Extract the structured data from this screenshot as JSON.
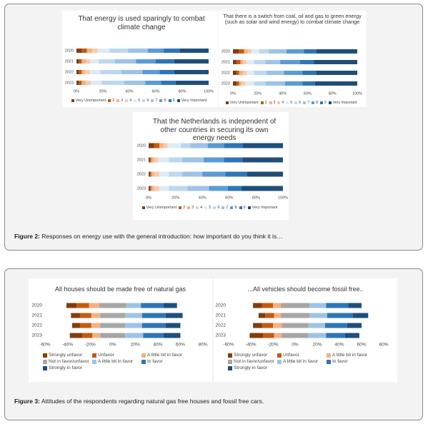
{
  "chart_data": [
    {
      "type": "stacked_bar",
      "title": "That energy is used sparingly to combat climate change",
      "categories": [
        "2020",
        "2021",
        "2022",
        "2023"
      ],
      "xlim": [
        0,
        100
      ],
      "xticks": [
        {
          "value": 0,
          "label": "0%"
        },
        {
          "value": 20,
          "label": "20%"
        },
        {
          "value": 40,
          "label": "40%"
        },
        {
          "value": 60,
          "label": "60%"
        },
        {
          "value": 80,
          "label": "80%"
        },
        {
          "value": 100,
          "label": "100%"
        }
      ],
      "series": [
        {
          "name": "Very Unimportant",
          "color": "#843c0c",
          "values": [
            4,
            2,
            2,
            2
          ]
        },
        {
          "name": "2",
          "color": "#c55a11",
          "values": [
            4,
            2,
            2,
            2
          ]
        },
        {
          "name": "3",
          "color": "#f4b183",
          "values": [
            4,
            3,
            2,
            3
          ]
        },
        {
          "name": "4",
          "color": "#f8cbad",
          "values": [
            4,
            3,
            4,
            4
          ]
        },
        {
          "name": "5",
          "color": "#deebf7",
          "values": [
            9,
            7,
            8,
            8
          ]
        },
        {
          "name": "6",
          "color": "#bdd7ee",
          "values": [
            14,
            12,
            16,
            17
          ]
        },
        {
          "name": "7",
          "color": "#9dc3e6",
          "values": [
            15,
            16,
            16,
            16
          ]
        },
        {
          "name": "8",
          "color": "#5b9bd5",
          "values": [
            12,
            15,
            13,
            12
          ]
        },
        {
          "name": "9",
          "color": "#2e75b6",
          "values": [
            12,
            14,
            11,
            11
          ]
        },
        {
          "name": "Very Important",
          "color": "#1f4e79",
          "values": [
            22,
            26,
            26,
            25
          ]
        }
      ]
    },
    {
      "type": "stacked_bar",
      "title": "That there is a switch from coal, oil and gas to green energy (such as solar and wind energy) to combat climate change",
      "categories": [
        "2020",
        "2021",
        "2022",
        "2023"
      ],
      "xlim": [
        0,
        100
      ],
      "xticks": [
        {
          "value": 0,
          "label": "0%"
        },
        {
          "value": 20,
          "label": "20%"
        },
        {
          "value": 40,
          "label": "40%"
        },
        {
          "value": 60,
          "label": "60%"
        },
        {
          "value": 80,
          "label": "80%"
        },
        {
          "value": 100,
          "label": "100%"
        }
      ],
      "series": [
        {
          "name": "Very Unimportant",
          "color": "#843c0c",
          "values": [
            5,
            3,
            3,
            3
          ]
        },
        {
          "name": "2",
          "color": "#c55a11",
          "values": [
            4,
            3,
            2,
            2
          ]
        },
        {
          "name": "3",
          "color": "#f4b183",
          "values": [
            3,
            2,
            3,
            2
          ]
        },
        {
          "name": "4",
          "color": "#f8cbad",
          "values": [
            3,
            3,
            3,
            3
          ]
        },
        {
          "name": "5",
          "color": "#deebf7",
          "values": [
            6,
            6,
            6,
            7
          ]
        },
        {
          "name": "6",
          "color": "#bdd7ee",
          "values": [
            8,
            9,
            10,
            9
          ]
        },
        {
          "name": "7",
          "color": "#9dc3e6",
          "values": [
            14,
            12,
            14,
            16
          ]
        },
        {
          "name": "8",
          "color": "#5b9bd5",
          "values": [
            14,
            16,
            15,
            14
          ]
        },
        {
          "name": "9",
          "color": "#2e75b6",
          "values": [
            10,
            11,
            11,
            10
          ]
        },
        {
          "name": "Very Important",
          "color": "#1f4e79",
          "values": [
            33,
            35,
            33,
            34
          ]
        }
      ]
    },
    {
      "type": "stacked_bar",
      "title": "That the Netherlands is independent of other countries in securing its own energy needs",
      "categories": [
        "2020",
        "2021",
        "2022",
        "2023"
      ],
      "xlim": [
        0,
        100
      ],
      "xticks": [
        {
          "value": 0,
          "label": "0%"
        },
        {
          "value": 20,
          "label": "20%"
        },
        {
          "value": 40,
          "label": "40%"
        },
        {
          "value": 60,
          "label": "60%"
        },
        {
          "value": 80,
          "label": "80%"
        },
        {
          "value": 100,
          "label": "100%"
        }
      ],
      "series": [
        {
          "name": "Very Unimportant",
          "color": "#843c0c",
          "values": [
            4,
            1,
            1,
            1
          ]
        },
        {
          "name": "2",
          "color": "#c55a11",
          "values": [
            4,
            1,
            1,
            1
          ]
        },
        {
          "name": "3",
          "color": "#f4b183",
          "values": [
            3,
            2,
            2,
            2
          ]
        },
        {
          "name": "4",
          "color": "#f8cbad",
          "values": [
            3,
            3,
            4,
            4
          ]
        },
        {
          "name": "5",
          "color": "#deebf7",
          "values": [
            10,
            8,
            7,
            7
          ]
        },
        {
          "name": "6",
          "color": "#bdd7ee",
          "values": [
            7,
            10,
            10,
            14
          ]
        },
        {
          "name": "7",
          "color": "#9dc3e6",
          "values": [
            13,
            16,
            15,
            16
          ]
        },
        {
          "name": "8",
          "color": "#5b9bd5",
          "values": [
            12,
            15,
            17,
            14
          ]
        },
        {
          "name": "9",
          "color": "#2e75b6",
          "values": [
            14,
            14,
            16,
            10
          ]
        },
        {
          "name": "Very Important",
          "color": "#1f4e79",
          "values": [
            30,
            30,
            27,
            31
          ]
        }
      ]
    },
    {
      "type": "diverging_bar",
      "title": "All houses should be made free of natural gas",
      "categories": [
        "2020",
        "2021",
        "2022",
        "2023"
      ],
      "xlim": [
        -60,
        80
      ],
      "xticks": [
        {
          "value": -60,
          "label": "-60%"
        },
        {
          "value": -40,
          "label": "-40%"
        },
        {
          "value": -20,
          "label": "-20%"
        },
        {
          "value": 0,
          "label": "0%"
        },
        {
          "value": 20,
          "label": "20%"
        },
        {
          "value": 40,
          "label": "40%"
        },
        {
          "value": 60,
          "label": "60%"
        },
        {
          "value": 80,
          "label": "80%"
        }
      ],
      "series": [
        {
          "name": "Strongly unfavor",
          "color": "#843c0c",
          "values": [
            9,
            8,
            7,
            11
          ]
        },
        {
          "name": "Unfavor",
          "color": "#c55a11",
          "values": [
            11,
            10,
            10,
            9
          ]
        },
        {
          "name": "A little bit in favor",
          "color": "#f4b183",
          "values": [
            9,
            8,
            8,
            7
          ]
        },
        {
          "name": "Not in favor/unfavor",
          "color": "#a6a6a6",
          "values": [
            24,
            22,
            22,
            22
          ]
        },
        {
          "name": "A little bit in favor",
          "color": "#9dc3e6",
          "values": [
            13,
            15,
            15,
            16
          ]
        },
        {
          "name": "In favor",
          "color": "#2e75b6",
          "values": [
            20,
            21,
            21,
            18
          ]
        },
        {
          "name": "Strongly in favor",
          "color": "#1f4e79",
          "values": [
            12,
            15,
            13,
            15
          ]
        }
      ]
    },
    {
      "type": "diverging_bar",
      "title": "...All vehicles should become fossil free..",
      "categories": [
        "2020",
        "2021",
        "2022",
        "2023"
      ],
      "xlim": [
        -60,
        80
      ],
      "xticks": [
        {
          "value": -60,
          "label": "-60%"
        },
        {
          "value": -40,
          "label": "-40%"
        },
        {
          "value": -20,
          "label": "-20%"
        },
        {
          "value": 0,
          "label": "0%"
        },
        {
          "value": 20,
          "label": "20%"
        },
        {
          "value": 40,
          "label": "40%"
        },
        {
          "value": 60,
          "label": "60%"
        },
        {
          "value": 80,
          "label": "80%"
        }
      ],
      "series": [
        {
          "name": "Strongly unfavor",
          "color": "#843c0c",
          "values": [
            8,
            6,
            8,
            12
          ]
        },
        {
          "name": "Unfavor",
          "color": "#c55a11",
          "values": [
            10,
            8,
            10,
            10
          ]
        },
        {
          "name": "A little bit in favor",
          "color": "#f4b183",
          "values": [
            7,
            6,
            8,
            7
          ]
        },
        {
          "name": "Not in favor/unfavor",
          "color": "#a6a6a6",
          "values": [
            26,
            26,
            24,
            24
          ]
        },
        {
          "name": "A little bit in favor",
          "color": "#9dc3e6",
          "values": [
            15,
            16,
            15,
            16
          ]
        },
        {
          "name": "In favor",
          "color": "#2e75b6",
          "values": [
            20,
            23,
            20,
            17
          ]
        },
        {
          "name": "Strongly in favor",
          "color": "#1f4e79",
          "values": [
            12,
            14,
            13,
            13
          ]
        }
      ]
    }
  ],
  "captions": [
    {
      "label": "Figure 2:",
      "text": "Responses on energy use with the general introduction: how important do you think it is…"
    },
    {
      "label": "Figure 3:",
      "text": "Attitudes of the respondents regarding natural gas free houses and fossil free cars."
    }
  ]
}
